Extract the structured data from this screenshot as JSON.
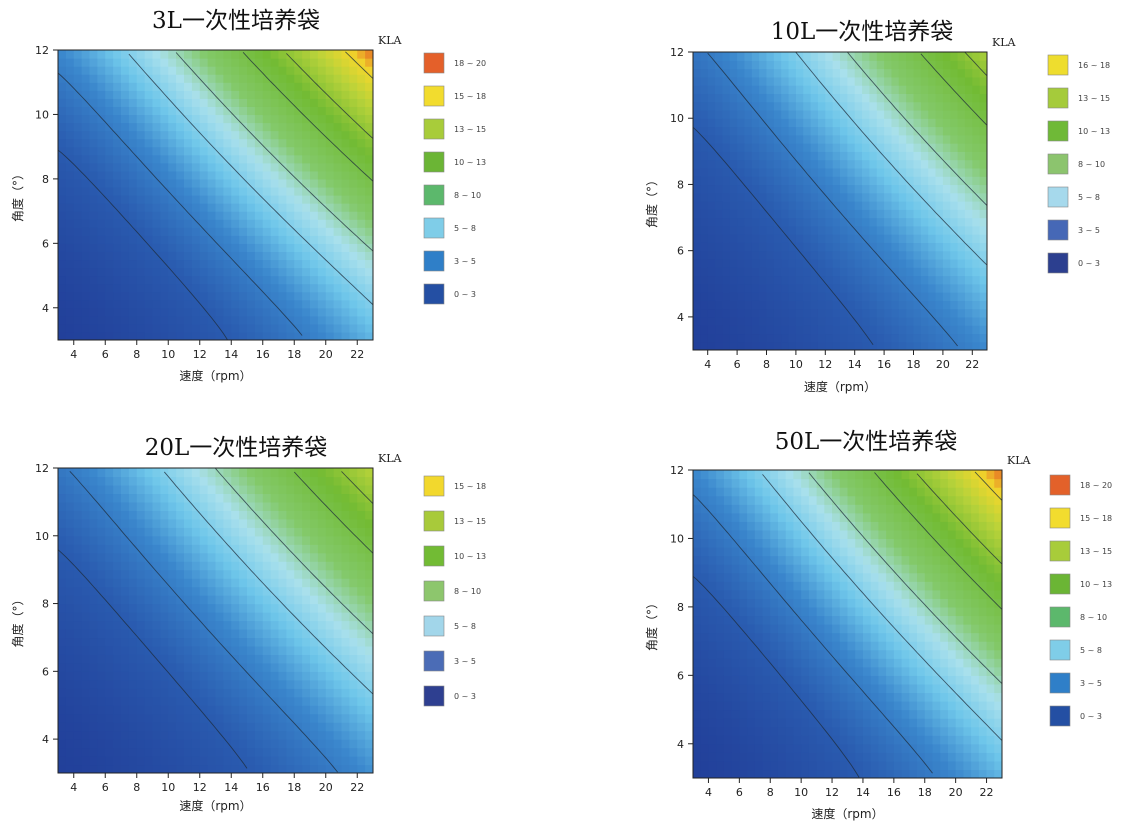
{
  "chart_data": [
    {
      "type": "heatmap",
      "title": "3L一次性培养袋",
      "xlabel": "速度（rpm）",
      "ylabel": "角度（°）",
      "legend_title": "KLA",
      "xticks": [
        "4",
        "6",
        "8",
        "10",
        "12",
        "14",
        "16",
        "18",
        "20",
        "22"
      ],
      "yticks": [
        "4",
        "6",
        "8",
        "10",
        "12"
      ],
      "xlim": [
        3,
        23
      ],
      "ylim": [
        3,
        12
      ],
      "zmax": 19.5,
      "legend": [
        {
          "label": "18 ~ 20",
          "color": "#e4602a"
        },
        {
          "label": "15 ~ 18",
          "color": "#f2dc2e"
        },
        {
          "label": "13 ~ 15",
          "color": "#a8cc3a"
        },
        {
          "label": "10 ~ 13",
          "color": "#6bb535"
        },
        {
          "label": "8 ~ 10",
          "color": "#5cb86c"
        },
        {
          "label": "5 ~ 8",
          "color": "#7fcde8"
        },
        {
          "label": "3 ~ 5",
          "color": "#2f7fc8"
        },
        {
          "label": "0 ~ 3",
          "color": "#244fa3"
        }
      ]
    },
    {
      "type": "heatmap",
      "title": "10L一次性培养袋",
      "xlabel": "速度（rpm）",
      "ylabel": "角度（°）",
      "legend_title": "KLA",
      "xticks": [
        "4",
        "6",
        "8",
        "10",
        "12",
        "14",
        "16",
        "18",
        "20",
        "22"
      ],
      "yticks": [
        "4",
        "6",
        "8",
        "10",
        "12"
      ],
      "xlim": [
        3,
        23
      ],
      "ylim": [
        3,
        12
      ],
      "zmax": 16,
      "legend": [
        {
          "label": "16 ~ 18",
          "color": "#eedd2e"
        },
        {
          "label": "13 ~ 15",
          "color": "#a5cb3b"
        },
        {
          "label": "10 ~ 13",
          "color": "#6fb937"
        },
        {
          "label": "8 ~ 10",
          "color": "#8cc46e"
        },
        {
          "label": "5 ~ 8",
          "color": "#a6d9ec"
        },
        {
          "label": "3 ~ 5",
          "color": "#4668b6"
        },
        {
          "label": "0 ~ 3",
          "color": "#2c3f8f"
        }
      ]
    },
    {
      "type": "heatmap",
      "title": "20L一次性培养袋",
      "xlabel": "速度（rpm）",
      "ylabel": "角度（°）",
      "legend_title": "KLA",
      "xticks": [
        "4",
        "6",
        "8",
        "10",
        "12",
        "14",
        "16",
        "18",
        "20",
        "22"
      ],
      "yticks": [
        "4",
        "6",
        "8",
        "10",
        "12"
      ],
      "xlim": [
        3,
        23
      ],
      "ylim": [
        3,
        12
      ],
      "zmax": 16.5,
      "legend": [
        {
          "label": "15 ~ 18",
          "color": "#f2d82d"
        },
        {
          "label": "13 ~ 15",
          "color": "#a8ca3a"
        },
        {
          "label": "10 ~ 13",
          "color": "#72bb34"
        },
        {
          "label": "8 ~ 10",
          "color": "#8dc66d"
        },
        {
          "label": "5 ~ 8",
          "color": "#a2d6ea"
        },
        {
          "label": "3 ~ 5",
          "color": "#4b6cb6"
        },
        {
          "label": "0 ~ 3",
          "color": "#2e3f90"
        }
      ]
    },
    {
      "type": "heatmap",
      "title": "50L一次性培养袋",
      "xlabel": "速度（rpm）",
      "ylabel": "角度（°）",
      "legend_title": "KLA",
      "xticks": [
        "4",
        "6",
        "8",
        "10",
        "12",
        "14",
        "16",
        "18",
        "20",
        "22"
      ],
      "yticks": [
        "4",
        "6",
        "8",
        "10",
        "12"
      ],
      "xlim": [
        3,
        23
      ],
      "ylim": [
        3,
        12
      ],
      "zmax": 19.5,
      "legend": [
        {
          "label": "18 ~ 20",
          "color": "#e3612a"
        },
        {
          "label": "15 ~ 18",
          "color": "#f2dc2e"
        },
        {
          "label": "13 ~ 15",
          "color": "#a8cc3a"
        },
        {
          "label": "10 ~ 13",
          "color": "#6bb535"
        },
        {
          "label": "8 ~ 10",
          "color": "#5cb86c"
        },
        {
          "label": "5 ~ 8",
          "color": "#7fcde8"
        },
        {
          "label": "3 ~ 5",
          "color": "#2f7fc8"
        },
        {
          "label": "0 ~ 3",
          "color": "#244fa3"
        }
      ]
    }
  ]
}
